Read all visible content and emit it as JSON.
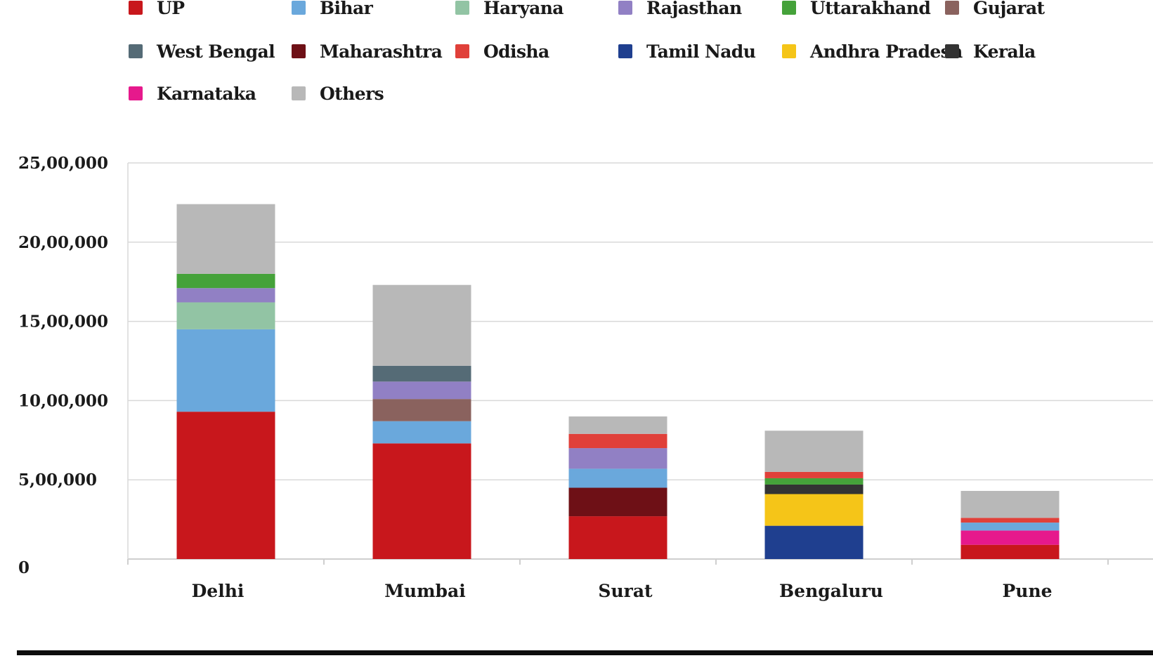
{
  "chart_data": {
    "type": "bar",
    "stacked": true,
    "categories": [
      "Delhi",
      "Mumbai",
      "Surat",
      "Bengaluru",
      "Pune"
    ],
    "ylim": [
      0,
      2500000
    ],
    "yticks": [
      0,
      500000,
      1000000,
      1500000,
      2000000,
      2500000
    ],
    "ytick_labels": [
      "0",
      "5,00,000",
      "10,00,000",
      "15,00,000",
      "20,00,000",
      "25,00,000"
    ],
    "grid": true,
    "legend_position": "top",
    "series": [
      {
        "name": "UP",
        "color": "#c8171c",
        "values": [
          930000,
          730000,
          270000,
          0,
          90000
        ]
      },
      {
        "name": "Tamil Nadu",
        "color": "#1f3f8f",
        "values": [
          0,
          0,
          0,
          210000,
          0
        ]
      },
      {
        "name": "Karnataka",
        "color": "#e6198c",
        "values": [
          0,
          0,
          0,
          0,
          90000
        ]
      },
      {
        "name": "Maharashtra",
        "color": "#6e1016",
        "values": [
          0,
          0,
          180000,
          0,
          0
        ]
      },
      {
        "name": "Andhra Pradesh",
        "color": "#f5c518",
        "values": [
          0,
          0,
          0,
          200000,
          0
        ]
      },
      {
        "name": "Kerala",
        "color": "#333333",
        "values": [
          0,
          0,
          0,
          60000,
          0
        ]
      },
      {
        "name": "Bihar",
        "color": "#6aa8dc",
        "values": [
          520000,
          140000,
          120000,
          0,
          50000
        ]
      },
      {
        "name": "Gujarat",
        "color": "#8a625e",
        "values": [
          0,
          140000,
          0,
          0,
          0
        ]
      },
      {
        "name": "Haryana",
        "color": "#92c4a4",
        "values": [
          170000,
          0,
          0,
          0,
          0
        ]
      },
      {
        "name": "Rajasthan",
        "color": "#9180c4",
        "values": [
          90000,
          110000,
          130000,
          0,
          0
        ]
      },
      {
        "name": "Uttarakhand",
        "color": "#45a23a",
        "values": [
          90000,
          0,
          0,
          40000,
          0
        ]
      },
      {
        "name": "West Bengal",
        "color": "#556b76",
        "values": [
          0,
          100000,
          0,
          0,
          0
        ]
      },
      {
        "name": "Odisha",
        "color": "#e0403a",
        "values": [
          0,
          0,
          90000,
          40000,
          30000
        ]
      },
      {
        "name": "Others",
        "color": "#b8b8b8",
        "values": [
          440000,
          510000,
          110000,
          260000,
          170000
        ]
      }
    ]
  },
  "legend": [
    {
      "label": "UP",
      "color": "#c8171c"
    },
    {
      "label": "Bihar",
      "color": "#6aa8dc"
    },
    {
      "label": "Haryana",
      "color": "#92c4a4"
    },
    {
      "label": "Rajasthan",
      "color": "#9180c4"
    },
    {
      "label": "Uttarakhand",
      "color": "#45a23a"
    },
    {
      "label": "Gujarat",
      "color": "#8a625e"
    },
    {
      "label": "West Bengal",
      "color": "#556b76"
    },
    {
      "label": "Maharashtra",
      "color": "#6e1016"
    },
    {
      "label": "Odisha",
      "color": "#e0403a"
    },
    {
      "label": "Tamil Nadu",
      "color": "#1f3f8f"
    },
    {
      "label": "Andhra Pradesh",
      "color": "#f5c518"
    },
    {
      "label": "Kerala",
      "color": "#333333"
    },
    {
      "label": "Karnataka",
      "color": "#e6198c"
    },
    {
      "label": "Others",
      "color": "#b8b8b8"
    }
  ]
}
